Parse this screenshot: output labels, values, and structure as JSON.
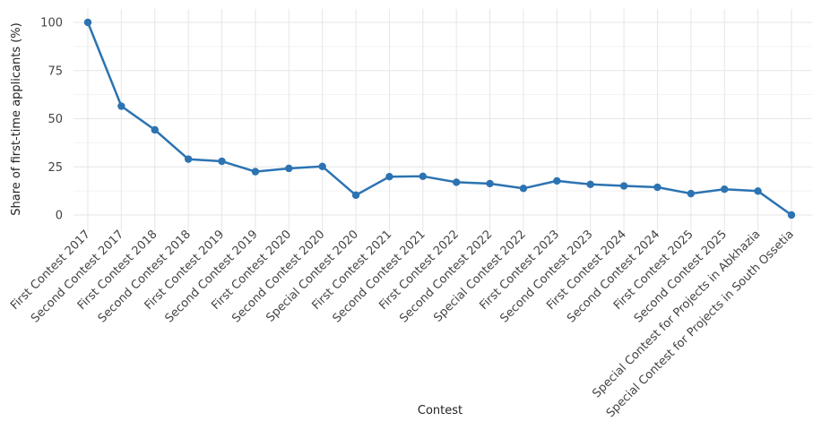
{
  "chart_data": {
    "type": "line",
    "title": "",
    "xlabel": "Contest",
    "ylabel": "Share of first-time applicants (%)",
    "ylim": [
      0,
      100
    ],
    "yticks": [
      0,
      25,
      50,
      75,
      100
    ],
    "grid": true,
    "line_color": "#2c73b2",
    "categories": [
      "First Contest 2017",
      "Second Contest 2017",
      "First Contest 2018",
      "Second Contest 2018",
      "First Contest 2019",
      "Second Contest 2019",
      "First Contest 2020",
      "Second Contest 2020",
      "Special Contest 2020",
      "First Contest 2021",
      "Second Contest 2021",
      "First Contest 2022",
      "Second Contest 2022",
      "Special Contest 2022",
      "First Contest 2023",
      "Second Contest 2023",
      "First Contest 2024",
      "Second Contest 2024",
      "First Contest 2025",
      "Second Contest 2025",
      "Special Contest for Projects in Abkhazia",
      "Special Contest for Projects in South Ossetia"
    ],
    "values": [
      100,
      56.5,
      44.2,
      29.0,
      27.9,
      22.5,
      24.2,
      25.2,
      10.3,
      19.9,
      20.1,
      17.0,
      16.3,
      13.8,
      17.7,
      15.9,
      15.1,
      14.4,
      11.1,
      13.4,
      12.4,
      0
    ]
  }
}
